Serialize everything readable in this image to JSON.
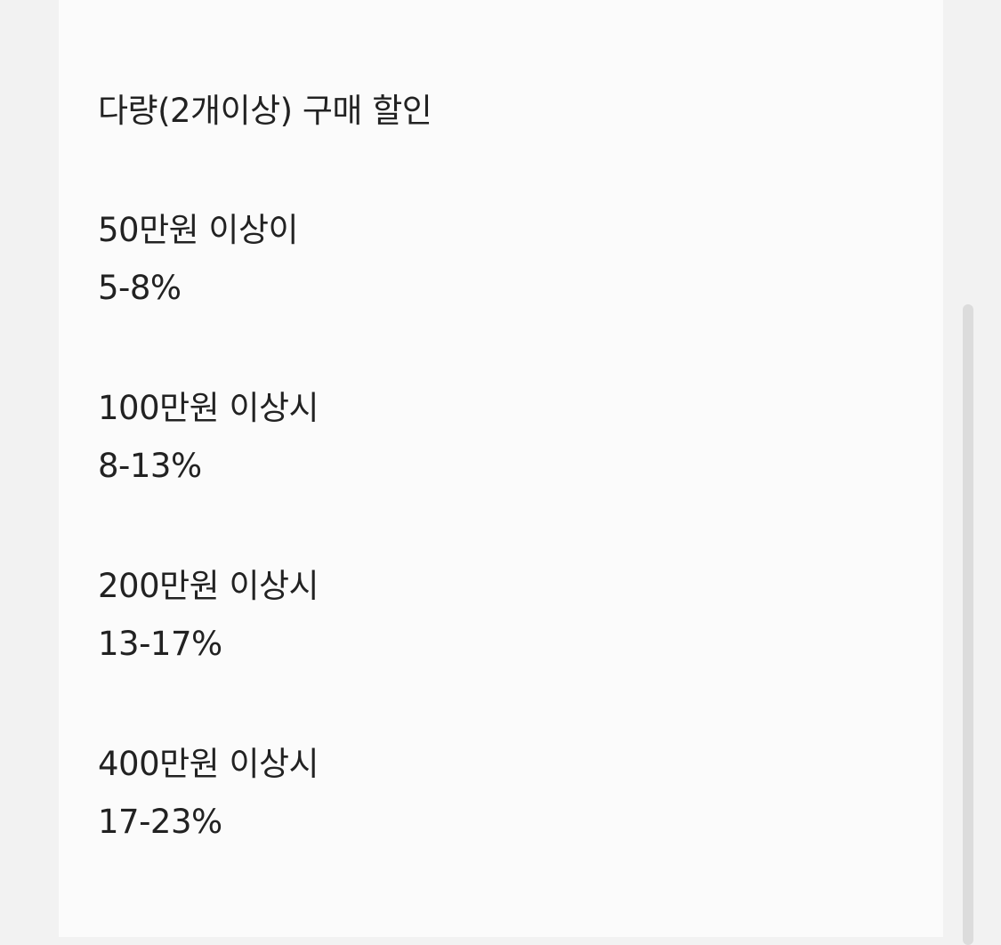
{
  "title": "다량(2개이상) 구매 할인",
  "tiers": [
    {
      "threshold": "50만원 이상이",
      "discount": "5-8%"
    },
    {
      "threshold": "100만원 이상시",
      "discount": "8-13%"
    },
    {
      "threshold": "200만원 이상시",
      "discount": "13-17%"
    },
    {
      "threshold": "400만원 이상시",
      "discount": "17-23%"
    }
  ]
}
